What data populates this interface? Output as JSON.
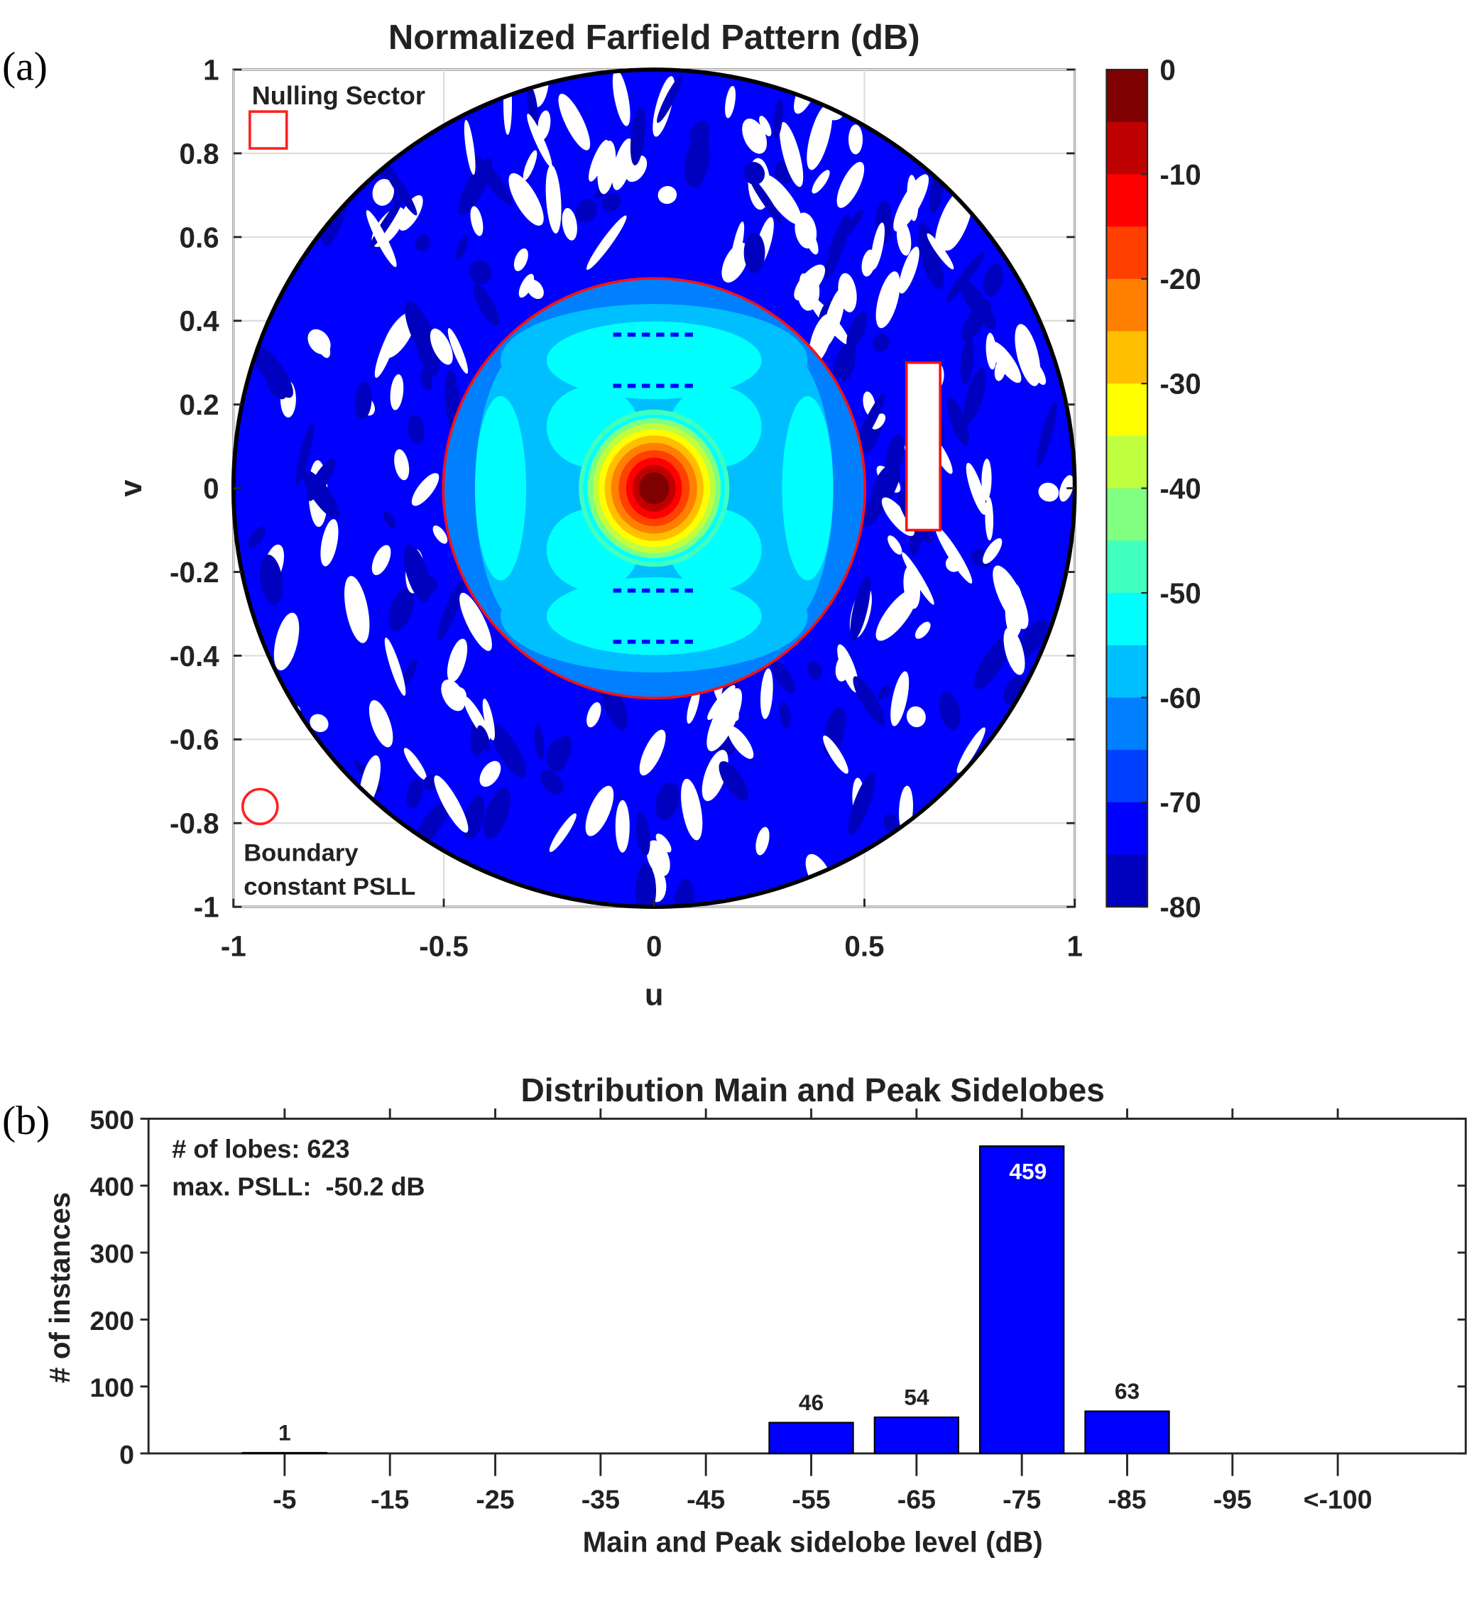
{
  "chart_data": [
    {
      "type": "heatmap",
      "panel_label": "(a)",
      "title": "Normalized Farfield Pattern (dB)",
      "xlabel": "u",
      "ylabel": "v",
      "xlim": [
        -1,
        1
      ],
      "ylim": [
        -1,
        1
      ],
      "xticks": [
        "-1",
        "-0.5",
        "0",
        "0.5",
        "1"
      ],
      "yticks": [
        "1",
        "0.8",
        "0.6",
        "0.4",
        "0.2",
        "0",
        "-0.2",
        "-0.4",
        "-0.6",
        "-0.8",
        "-1"
      ],
      "grid": true,
      "colorbar": {
        "range": [
          -80,
          0
        ],
        "ticks": [
          "0",
          "-10",
          "-20",
          "-30",
          "-40",
          "-50",
          "-60",
          "-70",
          "-80"
        ],
        "colors": [
          "#7f0000",
          "#bf0000",
          "#ff0000",
          "#ff4000",
          "#ff8000",
          "#ffbf00",
          "#ffff00",
          "#bfff40",
          "#80ff80",
          "#40ffbf",
          "#00ffff",
          "#00bfff",
          "#0080ff",
          "#0040ff",
          "#0000ff",
          "#0000bf"
        ]
      },
      "visible_region_radius": 1,
      "constant_psll_boundary_radius": 0.5,
      "nulling_sector": {
        "u": [
          0.6,
          0.68
        ],
        "v": [
          -0.1,
          0.3
        ]
      },
      "legend": {
        "nulling_label": "Nulling Sector",
        "boundary_label_line1": "Boundary",
        "boundary_label_line2": "constant PSLL",
        "placement": "left"
      }
    },
    {
      "type": "bar",
      "panel_label": "(b)",
      "title": "Distribution Main and Peak Sidelobes",
      "xlabel": "Main and Peak sidelobe level (dB)",
      "ylabel": "# of instances",
      "categories": [
        "-5",
        "-15",
        "-25",
        "-35",
        "-45",
        "-55",
        "-65",
        "-75",
        "-85",
        "-95",
        "<-100"
      ],
      "values": [
        1,
        0,
        0,
        0,
        0,
        46,
        54,
        459,
        63,
        0,
        0
      ],
      "data_labels": [
        "1",
        "",
        "",
        "",
        "",
        "46",
        "54",
        "459",
        "63",
        "",
        ""
      ],
      "ylim": [
        0,
        500
      ],
      "yticks": [
        "0",
        "100",
        "200",
        "300",
        "400",
        "500"
      ],
      "bar_color": "#0000ff",
      "annotations": [
        "# of lobes: 623",
        "max. PSLL:  -50.2 dB"
      ]
    }
  ]
}
